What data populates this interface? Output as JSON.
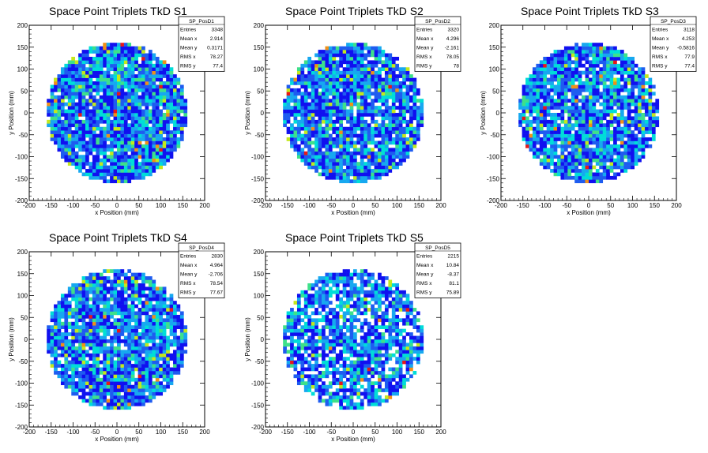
{
  "chart_data": [
    {
      "type": "heatmap",
      "title": "Space Point Triplets TkD S1",
      "xlabel": "x Position (mm)",
      "ylabel": "y Position (mm)",
      "xlim": [
        -200,
        200
      ],
      "ylim": [
        -200,
        200
      ],
      "x_ticks": [
        -200,
        -150,
        -100,
        -50,
        0,
        50,
        100,
        150,
        200
      ],
      "y_ticks": [
        -200,
        -150,
        -100,
        -50,
        0,
        50,
        100,
        150,
        200
      ],
      "occupied_region": {
        "shape": "disc",
        "center": [
          0,
          0
        ],
        "radius": 160
      },
      "bin_width": 8,
      "stats": {
        "name": "SP_PosD1",
        "rows": [
          {
            "label": "Entries",
            "value": "3348"
          },
          {
            "label": "Mean x",
            "value": "2.914"
          },
          {
            "label": "Mean y",
            "value": "0.3171"
          },
          {
            "label": "RMS x",
            "value": "78.27"
          },
          {
            "label": "RMS y",
            "value": "77.4"
          }
        ]
      }
    },
    {
      "type": "heatmap",
      "title": "Space Point Triplets TkD S2",
      "xlabel": "x Position (mm)",
      "ylabel": "y Position (mm)",
      "xlim": [
        -200,
        200
      ],
      "ylim": [
        -200,
        200
      ],
      "x_ticks": [
        -200,
        -150,
        -100,
        -50,
        0,
        50,
        100,
        150,
        200
      ],
      "y_ticks": [
        -200,
        -150,
        -100,
        -50,
        0,
        50,
        100,
        150,
        200
      ],
      "occupied_region": {
        "shape": "disc",
        "center": [
          0,
          0
        ],
        "radius": 160
      },
      "bin_width": 8,
      "stats": {
        "name": "SP_PosD2",
        "rows": [
          {
            "label": "Entries",
            "value": "3320"
          },
          {
            "label": "Mean x",
            "value": "4.296"
          },
          {
            "label": "Mean y",
            "value": "-2.161"
          },
          {
            "label": "RMS x",
            "value": "78.05"
          },
          {
            "label": "RMS y",
            "value": "78"
          }
        ]
      }
    },
    {
      "type": "heatmap",
      "title": "Space Point Triplets TkD S3",
      "xlabel": "x Position (mm)",
      "ylabel": "y Position (mm)",
      "xlim": [
        -200,
        200
      ],
      "ylim": [
        -200,
        200
      ],
      "x_ticks": [
        -200,
        -150,
        -100,
        -50,
        0,
        50,
        100,
        150,
        200
      ],
      "y_ticks": [
        -200,
        -150,
        -100,
        -50,
        0,
        50,
        100,
        150,
        200
      ],
      "occupied_region": {
        "shape": "disc",
        "center": [
          0,
          0
        ],
        "radius": 160
      },
      "bin_width": 8,
      "stats": {
        "name": "SP_PosD3",
        "rows": [
          {
            "label": "Entries",
            "value": "3118"
          },
          {
            "label": "Mean x",
            "value": "4.253"
          },
          {
            "label": "Mean y",
            "value": "-0.5816"
          },
          {
            "label": "RMS x",
            "value": "77.9"
          },
          {
            "label": "RMS y",
            "value": "77.4"
          }
        ]
      }
    },
    {
      "type": "heatmap",
      "title": "Space Point Triplets TkD S4",
      "xlabel": "x Position (mm)",
      "ylabel": "y Position (mm)",
      "xlim": [
        -200,
        200
      ],
      "ylim": [
        -200,
        200
      ],
      "x_ticks": [
        -200,
        -150,
        -100,
        -50,
        0,
        50,
        100,
        150,
        200
      ],
      "y_ticks": [
        -200,
        -150,
        -100,
        -50,
        0,
        50,
        100,
        150,
        200
      ],
      "occupied_region": {
        "shape": "disc",
        "center": [
          0,
          0
        ],
        "radius": 160
      },
      "bin_width": 8,
      "stats": {
        "name": "SP_PosD4",
        "rows": [
          {
            "label": "Entries",
            "value": "2830"
          },
          {
            "label": "Mean x",
            "value": "4.964"
          },
          {
            "label": "Mean y",
            "value": "-2.706"
          },
          {
            "label": "RMS x",
            "value": "78.54"
          },
          {
            "label": "RMS y",
            "value": "77.67"
          }
        ]
      }
    },
    {
      "type": "heatmap",
      "title": "Space Point Triplets TkD S5",
      "xlabel": "x Position (mm)",
      "ylabel": "y Position (mm)",
      "xlim": [
        -200,
        200
      ],
      "ylim": [
        -200,
        200
      ],
      "x_ticks": [
        -200,
        -150,
        -100,
        -50,
        0,
        50,
        100,
        150,
        200
      ],
      "y_ticks": [
        -200,
        -150,
        -100,
        -50,
        0,
        50,
        100,
        150,
        200
      ],
      "occupied_region": {
        "shape": "disc",
        "center": [
          0,
          0
        ],
        "radius": 160
      },
      "bin_width": 8,
      "stats": {
        "name": "SP_PosD5",
        "rows": [
          {
            "label": "Entries",
            "value": "2215"
          },
          {
            "label": "Mean x",
            "value": "10.84"
          },
          {
            "label": "Mean y",
            "value": "-8.37"
          },
          {
            "label": "RMS x",
            "value": "81.1"
          },
          {
            "label": "RMS y",
            "value": "75.89"
          }
        ]
      }
    }
  ],
  "palette": [
    "#1010f0",
    "#1e5cf0",
    "#17a8f0",
    "#00ddd8",
    "#3ee08a",
    "#c4e81c",
    "#f09018",
    "#e81818"
  ]
}
